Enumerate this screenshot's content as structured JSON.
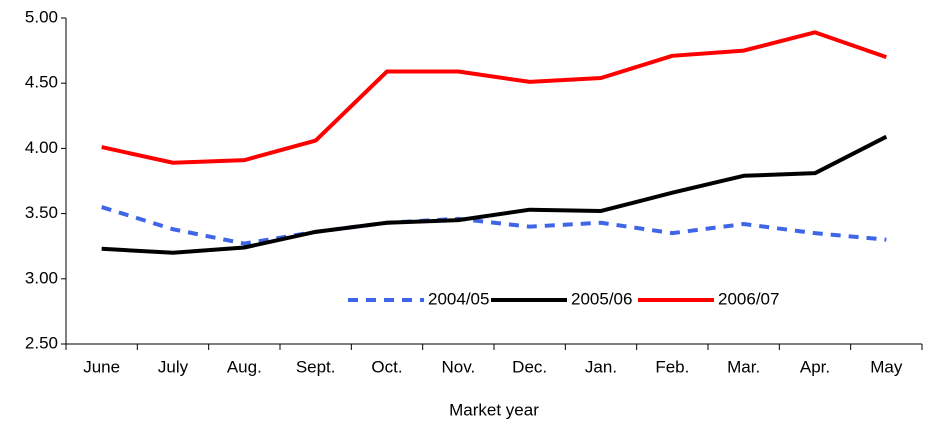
{
  "chart_data": {
    "type": "line",
    "x_label": "Market year",
    "categories": [
      "June",
      "July",
      "Aug.",
      "Sept.",
      "Oct.",
      "Nov.",
      "Dec.",
      "Jan.",
      "Feb.",
      "Mar.",
      "Apr.",
      "May"
    ],
    "series": [
      {
        "name": "2004/05",
        "color": "#3f66e6",
        "dashed": true,
        "values": [
          3.55,
          3.38,
          3.27,
          3.36,
          3.43,
          3.46,
          3.4,
          3.43,
          3.35,
          3.42,
          3.35,
          3.3
        ]
      },
      {
        "name": "2005/06",
        "color": "#000000",
        "dashed": false,
        "values": [
          3.23,
          3.2,
          3.24,
          3.36,
          3.43,
          3.45,
          3.53,
          3.52,
          3.66,
          3.79,
          3.81,
          4.09
        ]
      },
      {
        "name": "2006/07",
        "color": "#ff0000",
        "dashed": false,
        "values": [
          4.01,
          3.89,
          3.91,
          4.06,
          4.59,
          4.59,
          4.51,
          4.54,
          4.71,
          4.75,
          4.89,
          4.7
        ]
      }
    ],
    "ylim": [
      2.5,
      5.0
    ],
    "yticks": [
      {
        "value": 2.5,
        "label": "2.50"
      },
      {
        "value": 3.0,
        "label": "3.00"
      },
      {
        "value": 3.5,
        "label": "3.50"
      },
      {
        "value": 4.0,
        "label": "4.00"
      },
      {
        "value": 4.5,
        "label": "4.50"
      },
      {
        "value": 5.0,
        "label": "5.00"
      }
    ],
    "grid": false
  }
}
